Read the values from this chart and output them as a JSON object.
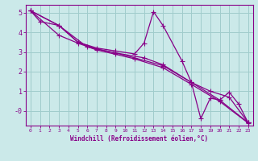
{
  "background_color": "#cbe9e9",
  "line_color": "#880088",
  "grid_color": "#a0cccc",
  "xlabel": "Windchill (Refroidissement éolien,°C)",
  "xlabel_color": "#880088",
  "tick_color": "#880088",
  "xlim": [
    -0.5,
    23.5
  ],
  "ylim": [
    -0.75,
    5.4
  ],
  "yticks": [
    0,
    1,
    2,
    3,
    4,
    5
  ],
  "ytick_labels": [
    "-0",
    "1",
    "2",
    "3",
    "4",
    "5"
  ],
  "xticks": [
    0,
    1,
    2,
    3,
    4,
    5,
    6,
    7,
    8,
    9,
    10,
    11,
    12,
    13,
    14,
    15,
    16,
    17,
    18,
    19,
    20,
    21,
    22,
    23
  ],
  "line1_x": [
    0,
    1,
    3,
    5,
    7,
    9,
    11,
    12,
    13,
    14,
    16,
    17,
    18,
    19,
    20,
    21,
    22,
    23
  ],
  "line1_y": [
    5.1,
    4.55,
    4.35,
    3.5,
    3.2,
    3.05,
    2.9,
    3.45,
    5.05,
    4.35,
    2.55,
    1.45,
    -0.4,
    0.65,
    0.55,
    0.95,
    0.35,
    -0.6
  ],
  "line2_x": [
    0,
    3,
    5,
    7,
    9,
    11,
    14,
    17,
    20,
    23
  ],
  "line2_y": [
    5.1,
    4.35,
    3.5,
    3.15,
    2.95,
    2.7,
    2.3,
    1.45,
    0.55,
    -0.6
  ],
  "line3_x": [
    0,
    3,
    5,
    7,
    9,
    11,
    14,
    17,
    20,
    23
  ],
  "line3_y": [
    5.1,
    3.85,
    3.45,
    3.1,
    2.88,
    2.65,
    2.2,
    1.35,
    0.48,
    -0.62
  ],
  "line4_x": [
    0,
    3,
    6,
    9,
    12,
    14,
    17,
    19,
    21,
    23
  ],
  "line4_y": [
    5.1,
    4.35,
    3.25,
    2.95,
    2.7,
    2.35,
    1.45,
    1.0,
    0.7,
    -0.6
  ]
}
